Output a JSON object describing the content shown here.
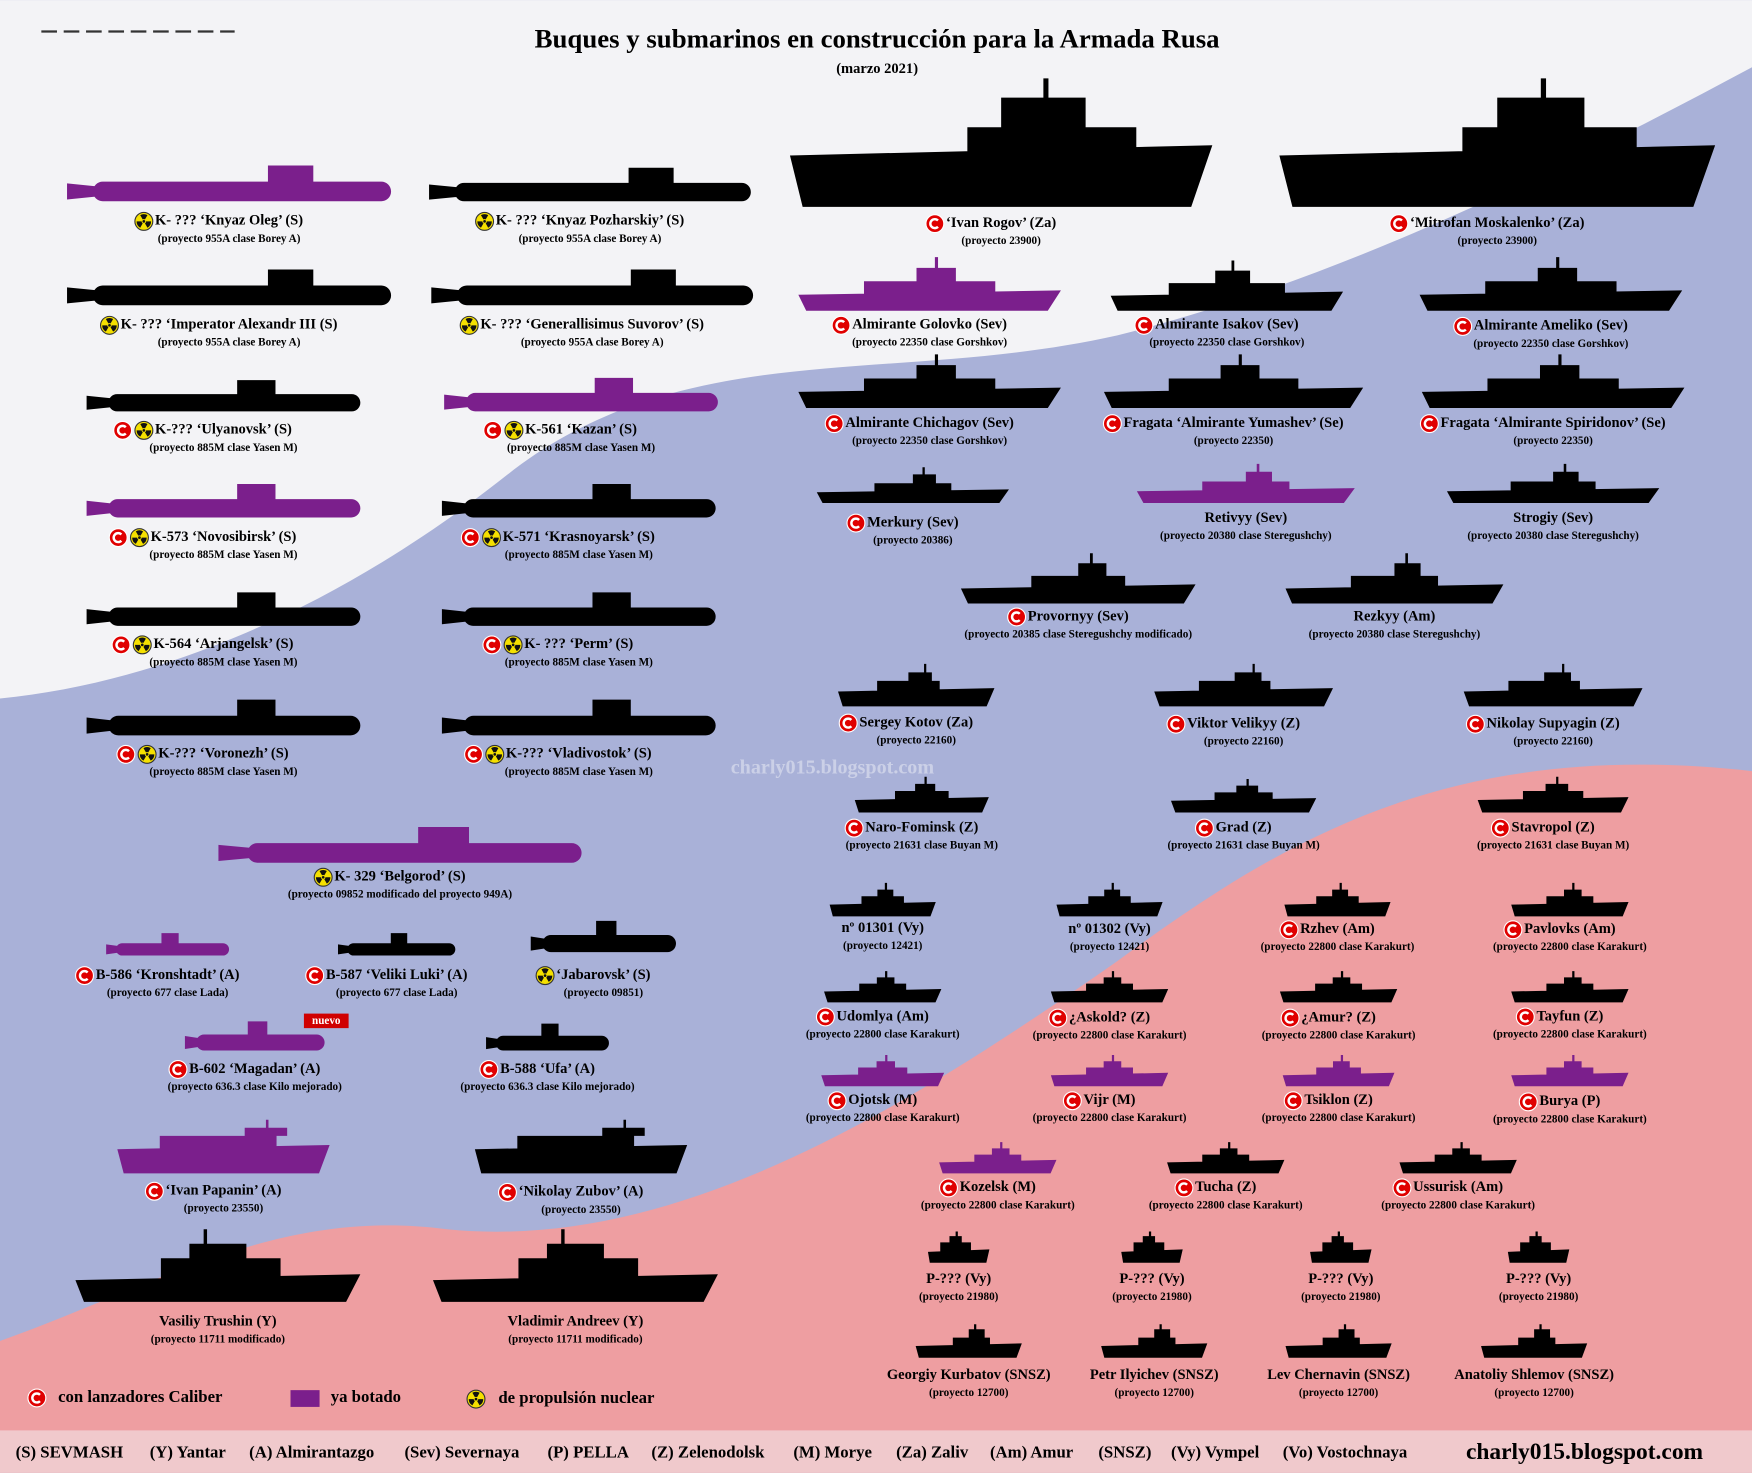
{
  "header": {
    "title": "Buques y submarinos en construcción para la Armada Rusa",
    "subtitle": "(marzo 2021)"
  },
  "vessels": [
    {
      "name": "K- ??? ‘Knyaz Oleg’ (S)",
      "project": "(proyecto 955A clase Borey A)",
      "caliber": false,
      "nuclear": true,
      "launched": true
    },
    {
      "name": "K- ??? ‘Knyaz Pozharskiy’ (S)",
      "project": "(proyecto 955A clase Borey A)",
      "caliber": false,
      "nuclear": true,
      "launched": false
    },
    {
      "name": "K- ??? ‘Imperator Alexandr III (S)",
      "project": "(proyecto 955A clase Borey A)",
      "caliber": false,
      "nuclear": true,
      "launched": false
    },
    {
      "name": "K- ??? ‘Generallisimus Suvorov’ (S)",
      "project": "(proyecto 955A clase Borey A)",
      "caliber": false,
      "nuclear": true,
      "launched": false
    },
    {
      "name": "K-??? ‘Ulyanovsk’ (S)",
      "project": "(proyecto 885M clase Yasen M)",
      "caliber": true,
      "nuclear": true,
      "launched": false
    },
    {
      "name": "K-561 ‘Kazan’ (S)",
      "project": "(proyecto 885M clase Yasen M)",
      "caliber": true,
      "nuclear": true,
      "launched": true
    },
    {
      "name": "K-573 ‘Novosibirsk’ (S)",
      "project": "(proyecto 885M clase Yasen M)",
      "caliber": true,
      "nuclear": true,
      "launched": true
    },
    {
      "name": "K-571 ‘Krasnoyarsk’ (S)",
      "project": "(proyecto 885M clase Yasen M)",
      "caliber": true,
      "nuclear": true,
      "launched": false
    },
    {
      "name": "K-564 ‘Arjangelsk’ (S)",
      "project": "(proyecto 885M clase Yasen M)",
      "caliber": true,
      "nuclear": true,
      "launched": false
    },
    {
      "name": "K- ??? ‘Perm’ (S)",
      "project": "(proyecto 885M clase Yasen M)",
      "caliber": true,
      "nuclear": true,
      "launched": false
    },
    {
      "name": "K-??? ‘Voronezh’ (S)",
      "project": "(proyecto 885M clase Yasen M)",
      "caliber": true,
      "nuclear": true,
      "launched": false
    },
    {
      "name": "K-??? ‘Vladivostok’ (S)",
      "project": "(proyecto 885M clase Yasen M)",
      "caliber": true,
      "nuclear": true,
      "launched": false
    },
    {
      "name": "K- 329 ‘Belgorod’ (S)",
      "project": "(proyecto 09852 modificado del proyecto 949A)",
      "caliber": false,
      "nuclear": true,
      "launched": true
    },
    {
      "name": "B-586 ‘Kronshtadt’ (A)",
      "project": "(proyecto 677 clase Lada)",
      "caliber": true,
      "nuclear": false,
      "launched": true
    },
    {
      "name": "B-587 ‘Veliki Luki’ (A)",
      "project": "(proyecto 677 clase Lada)",
      "caliber": true,
      "nuclear": false,
      "launched": false
    },
    {
      "name": "‘Jabarovsk’ (S)",
      "project": "(proyecto 09851)",
      "caliber": false,
      "nuclear": true,
      "launched": false
    },
    {
      "name": "B-602 ‘Magadan’ (A)",
      "project": "(proyecto 636.3 clase Kilo mejorado)",
      "caliber": true,
      "nuclear": false,
      "launched": true,
      "badge": "nuevo"
    },
    {
      "name": "B-588 ‘Ufa’ (A)",
      "project": "(proyecto 636.3 clase Kilo mejorado)",
      "caliber": true,
      "nuclear": false,
      "launched": false
    },
    {
      "name": "‘Ivan Papanin’ (A)",
      "project": "(proyecto 23550)",
      "caliber": true,
      "nuclear": false,
      "launched": true
    },
    {
      "name": "‘Nikolay Zubov’ (A)",
      "project": "(proyecto 23550)",
      "caliber": true,
      "nuclear": false,
      "launched": false
    },
    {
      "name": "Vasiliy Trushin (Y)",
      "project": "(proyecto 11711 modificado)",
      "caliber": false,
      "nuclear": false,
      "launched": false
    },
    {
      "name": "Vladimir Andreev (Y)",
      "project": "(proyecto 11711 modificado)",
      "caliber": false,
      "nuclear": false,
      "launched": false
    },
    {
      "name": "‘Ivan Rogov’ (Za)",
      "project": "(proyecto 23900)",
      "caliber": true,
      "nuclear": false,
      "launched": false
    },
    {
      "name": "‘Mitrofan Moskalenko’ (Za)",
      "project": "(proyecto 23900)",
      "caliber": true,
      "nuclear": false,
      "launched": false
    },
    {
      "name": "Almirante Golovko (Sev)",
      "project": "(proyecto 22350 clase Gorshkov)",
      "caliber": true,
      "nuclear": false,
      "launched": true
    },
    {
      "name": "Almirante Isakov (Sev)",
      "project": "(proyecto 22350 clase Gorshkov)",
      "caliber": true,
      "nuclear": false,
      "launched": false
    },
    {
      "name": "Almirante Ameliko (Sev)",
      "project": "(proyecto 22350 clase Gorshkov)",
      "caliber": true,
      "nuclear": false,
      "launched": false
    },
    {
      "name": "Almirante Chichagov (Sev)",
      "project": "(proyecto 22350 clase Gorshkov)",
      "caliber": true,
      "nuclear": false,
      "launched": false
    },
    {
      "name": "Fragata ‘Almirante Yumashev’ (Se)",
      "project": "(proyecto  22350)",
      "caliber": true,
      "nuclear": false,
      "launched": false
    },
    {
      "name": "Fragata ‘Almirante Spiridonov’ (Se)",
      "project": "(proyecto  22350)",
      "caliber": true,
      "nuclear": false,
      "launched": false
    },
    {
      "name": "Merkury (Sev)",
      "project": "(proyecto 20386)",
      "caliber": true,
      "nuclear": false,
      "launched": false
    },
    {
      "name": "Retivyy (Sev)",
      "project": "(proyecto 20380 clase Steregushchy)",
      "caliber": false,
      "nuclear": false,
      "launched": true
    },
    {
      "name": "Strogiy (Sev)",
      "project": "(proyecto 20380 clase Steregushchy)",
      "caliber": false,
      "nuclear": false,
      "launched": false
    },
    {
      "name": "Provornyy (Sev)",
      "project": "(proyecto 20385 clase Steregushchy modificado)",
      "caliber": true,
      "nuclear": false,
      "launched": false
    },
    {
      "name": "Rezkyy (Am)",
      "project": "(proyecto 20380 clase Steregushchy)",
      "caliber": false,
      "nuclear": false,
      "launched": false
    },
    {
      "name": "Sergey Kotov (Za)",
      "project": "(proyecto 22160)",
      "caliber": true,
      "nuclear": false,
      "launched": false
    },
    {
      "name": "Viktor Velikyy (Z)",
      "project": "(proyecto 22160)",
      "caliber": true,
      "nuclear": false,
      "launched": false
    },
    {
      "name": "Nikolay Supyagin (Z)",
      "project": "(proyecto 22160)",
      "caliber": true,
      "nuclear": false,
      "launched": false
    },
    {
      "name": "Naro-Fominsk (Z)",
      "project": "(proyecto 21631 clase Buyan M)",
      "caliber": true,
      "nuclear": false,
      "launched": false
    },
    {
      "name": "Grad (Z)",
      "project": "(proyecto 21631 clase Buyan M)",
      "caliber": true,
      "nuclear": false,
      "launched": false
    },
    {
      "name": "Stavropol (Z)",
      "project": "(proyecto 21631 clase Buyan M)",
      "caliber": true,
      "nuclear": false,
      "launched": false
    },
    {
      "name": "nº 01301 (Vy)",
      "project": "(proyecto 12421)",
      "caliber": false,
      "nuclear": false,
      "launched": false
    },
    {
      "name": "nº 01302 (Vy)",
      "project": "(proyecto 12421)",
      "caliber": false,
      "nuclear": false,
      "launched": false
    },
    {
      "name": "Rzhev (Am)",
      "project": "(proyecto 22800 clase Karakurt)",
      "caliber": true,
      "nuclear": false,
      "launched": false
    },
    {
      "name": "Pavlovks (Am)",
      "project": "(proyecto 22800 clase Karakurt)",
      "caliber": true,
      "nuclear": false,
      "launched": false
    },
    {
      "name": "Udomlya (Am)",
      "project": "(proyecto 22800 clase Karakurt)",
      "caliber": true,
      "nuclear": false,
      "launched": false
    },
    {
      "name": "¿Askold? (Z)",
      "project": "(proyecto 22800 clase Karakurt)",
      "caliber": true,
      "nuclear": false,
      "launched": false
    },
    {
      "name": "¿Amur? (Z)",
      "project": "(proyecto 22800 clase Karakurt)",
      "caliber": true,
      "nuclear": false,
      "launched": false
    },
    {
      "name": "Tayfun (Z)",
      "project": "(proyecto 22800 clase Karakurt)",
      "caliber": true,
      "nuclear": false,
      "launched": false
    },
    {
      "name": "Ojotsk (M)",
      "project": "(proyecto 22800 clase Karakurt)",
      "caliber": true,
      "nuclear": false,
      "launched": true
    },
    {
      "name": "Vijr (M)",
      "project": "(proyecto 22800 clase Karakurt)",
      "caliber": true,
      "nuclear": false,
      "launched": true
    },
    {
      "name": "Tsiklon (Z)",
      "project": "(proyecto 22800 clase Karakurt)",
      "caliber": true,
      "nuclear": false,
      "launched": true
    },
    {
      "name": "Burya (P)",
      "project": "(proyecto 22800 clase Karakurt)",
      "caliber": true,
      "nuclear": false,
      "launched": true
    },
    {
      "name": "Kozelsk (M)",
      "project": "(proyecto 22800 clase Karakurt)",
      "caliber": true,
      "nuclear": false,
      "launched": true
    },
    {
      "name": "Tucha (Z)",
      "project": "(proyecto 22800 clase Karakurt)",
      "caliber": true,
      "nuclear": false,
      "launched": false
    },
    {
      "name": "Ussurisk (Am)",
      "project": "(proyecto 22800 clase Karakurt)",
      "caliber": true,
      "nuclear": false,
      "launched": false
    },
    {
      "name": "P-??? (Vy)",
      "project": "(proyecto 21980)",
      "caliber": false,
      "nuclear": false,
      "launched": false
    },
    {
      "name": "P-??? (Vy)",
      "project": "(proyecto 21980)",
      "caliber": false,
      "nuclear": false,
      "launched": false
    },
    {
      "name": "P-??? (Vy)",
      "project": "(proyecto 21980)",
      "caliber": false,
      "nuclear": false,
      "launched": false
    },
    {
      "name": "P-??? (Vy)",
      "project": "(proyecto 21980)",
      "caliber": false,
      "nuclear": false,
      "launched": false
    },
    {
      "name": "Georgiy Kurbatov (SNSZ)",
      "project": "(proyecto 12700)",
      "caliber": false,
      "nuclear": false,
      "launched": false
    },
    {
      "name": "Petr Ilyichev (SNSZ)",
      "project": "(proyecto 12700)",
      "caliber": false,
      "nuclear": false,
      "launched": false
    },
    {
      "name": "Lev Chernavin (SNSZ)",
      "project": "(proyecto 12700)",
      "caliber": false,
      "nuclear": false,
      "launched": false
    },
    {
      "name": "Anatoliy Shlemov (SNSZ)",
      "project": "(proyecto 12700)",
      "caliber": false,
      "nuclear": false,
      "launched": false
    }
  ],
  "colors": {
    "launched": "#7b1f8c",
    "building": "#000000"
  },
  "legend": {
    "caliber": "con lanzadores Caliber",
    "launched": "ya botado",
    "nuclear": "de propulsión nuclear"
  },
  "shipyards": [
    "(S) SEVMASH",
    "(Y) Yantar",
    "(A) Almirantazgo",
    "(Sev) Severnaya",
    "(P) PELLA",
    "(Z) Zelenodolsk",
    "(M) Morye",
    "(Za) Zaliv",
    "(Am) Amur",
    "(SNSZ)",
    "(Vy) Vympel",
    "(Vo) Vostochnaya"
  ],
  "watermark": "charly015.blogspot.com",
  "website": "charly015.blogspot.com"
}
